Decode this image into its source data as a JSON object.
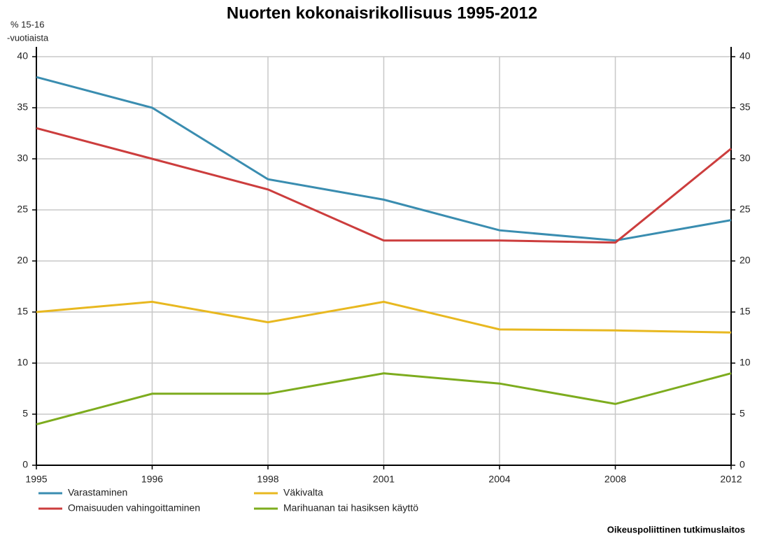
{
  "chart_data": {
    "type": "line",
    "title": "Nuorten kokonaisrikollisuus 1995-2012",
    "y_label": [
      "% 15-16",
      "-vuotiaista"
    ],
    "source": "Oikeuspoliittinen tutkimuslaitos",
    "categories": [
      "1995",
      "1996",
      "1998",
      "2001",
      "2004",
      "2008",
      "2012"
    ],
    "series": [
      {
        "name": "Varastaminen",
        "color": "#3a8db0",
        "values": [
          38,
          35,
          28,
          26,
          23,
          22,
          24
        ]
      },
      {
        "name": "Omaisuuden vahingoittaminen",
        "color": "#cc3d3d",
        "values": [
          33,
          30,
          27,
          22,
          22,
          21.8,
          31
        ]
      },
      {
        "name": "Väkivalta",
        "color": "#e8b820",
        "values": [
          15,
          16,
          14,
          16,
          13.3,
          13.2,
          13
        ]
      },
      {
        "name": "Marihuanan tai hasiksen käyttö",
        "color": "#7dac1e",
        "values": [
          4,
          7,
          7,
          9,
          8,
          6,
          9
        ]
      }
    ],
    "ylim": [
      0,
      40
    ],
    "yticks": [
      0,
      5,
      10,
      15,
      20,
      25,
      30,
      35,
      40
    ],
    "y2lim": [
      0,
      40
    ],
    "y2ticks": [
      0,
      5,
      10,
      15,
      20,
      25,
      30,
      35,
      40
    ],
    "grid": true
  }
}
